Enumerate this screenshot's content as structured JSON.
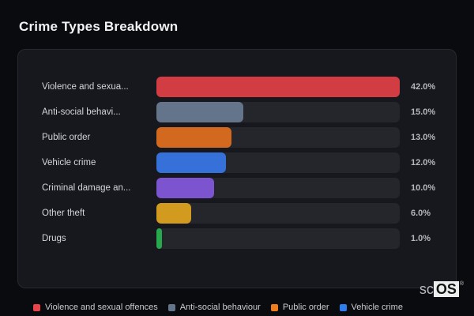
{
  "header": {
    "title": "Crime Types Breakdown"
  },
  "chart_data": {
    "type": "bar",
    "orientation": "horizontal",
    "title": "Crime Types Breakdown",
    "categories": [
      "Violence and sexua...",
      "Anti-social behavi...",
      "Public order",
      "Vehicle crime",
      "Criminal damage an...",
      "Other theft",
      "Drugs"
    ],
    "values": [
      42.0,
      15.0,
      13.0,
      12.0,
      10.0,
      6.0,
      1.0
    ],
    "value_labels": [
      "42.0%",
      "15.0%",
      "13.0%",
      "12.0%",
      "10.0%",
      "6.0%",
      "1.0%"
    ],
    "colors": [
      "#d23d43",
      "#64748b",
      "#d2691e",
      "#3571d9",
      "#7d54cf",
      "#d39a20",
      "#27a84d"
    ],
    "max_value": 42.0,
    "unit": "%",
    "grid": false,
    "legend_position": "bottom",
    "legend": {
      "items": [
        {
          "label": "Violence and sexual offences",
          "color": "#ea4349"
        },
        {
          "label": "Anti-social behaviour",
          "color": "#64748b"
        },
        {
          "label": "Public order",
          "color": "#f07c1b"
        },
        {
          "label": "Vehicle crime",
          "color": "#2f7ef0"
        }
      ]
    }
  },
  "branding": {
    "text_left": "sc",
    "text_boxed": "OS",
    "registered_mark": "®"
  },
  "theme": {
    "page_background": "#0a0b0e",
    "panel_background": "#16181d",
    "panel_border": "#272930",
    "track_color": "#24262c",
    "title_color": "#f2f3f5",
    "label_color": "#d3d5d9",
    "value_color": "#b4b7bd",
    "legend_text_color": "#c9ccd1"
  }
}
